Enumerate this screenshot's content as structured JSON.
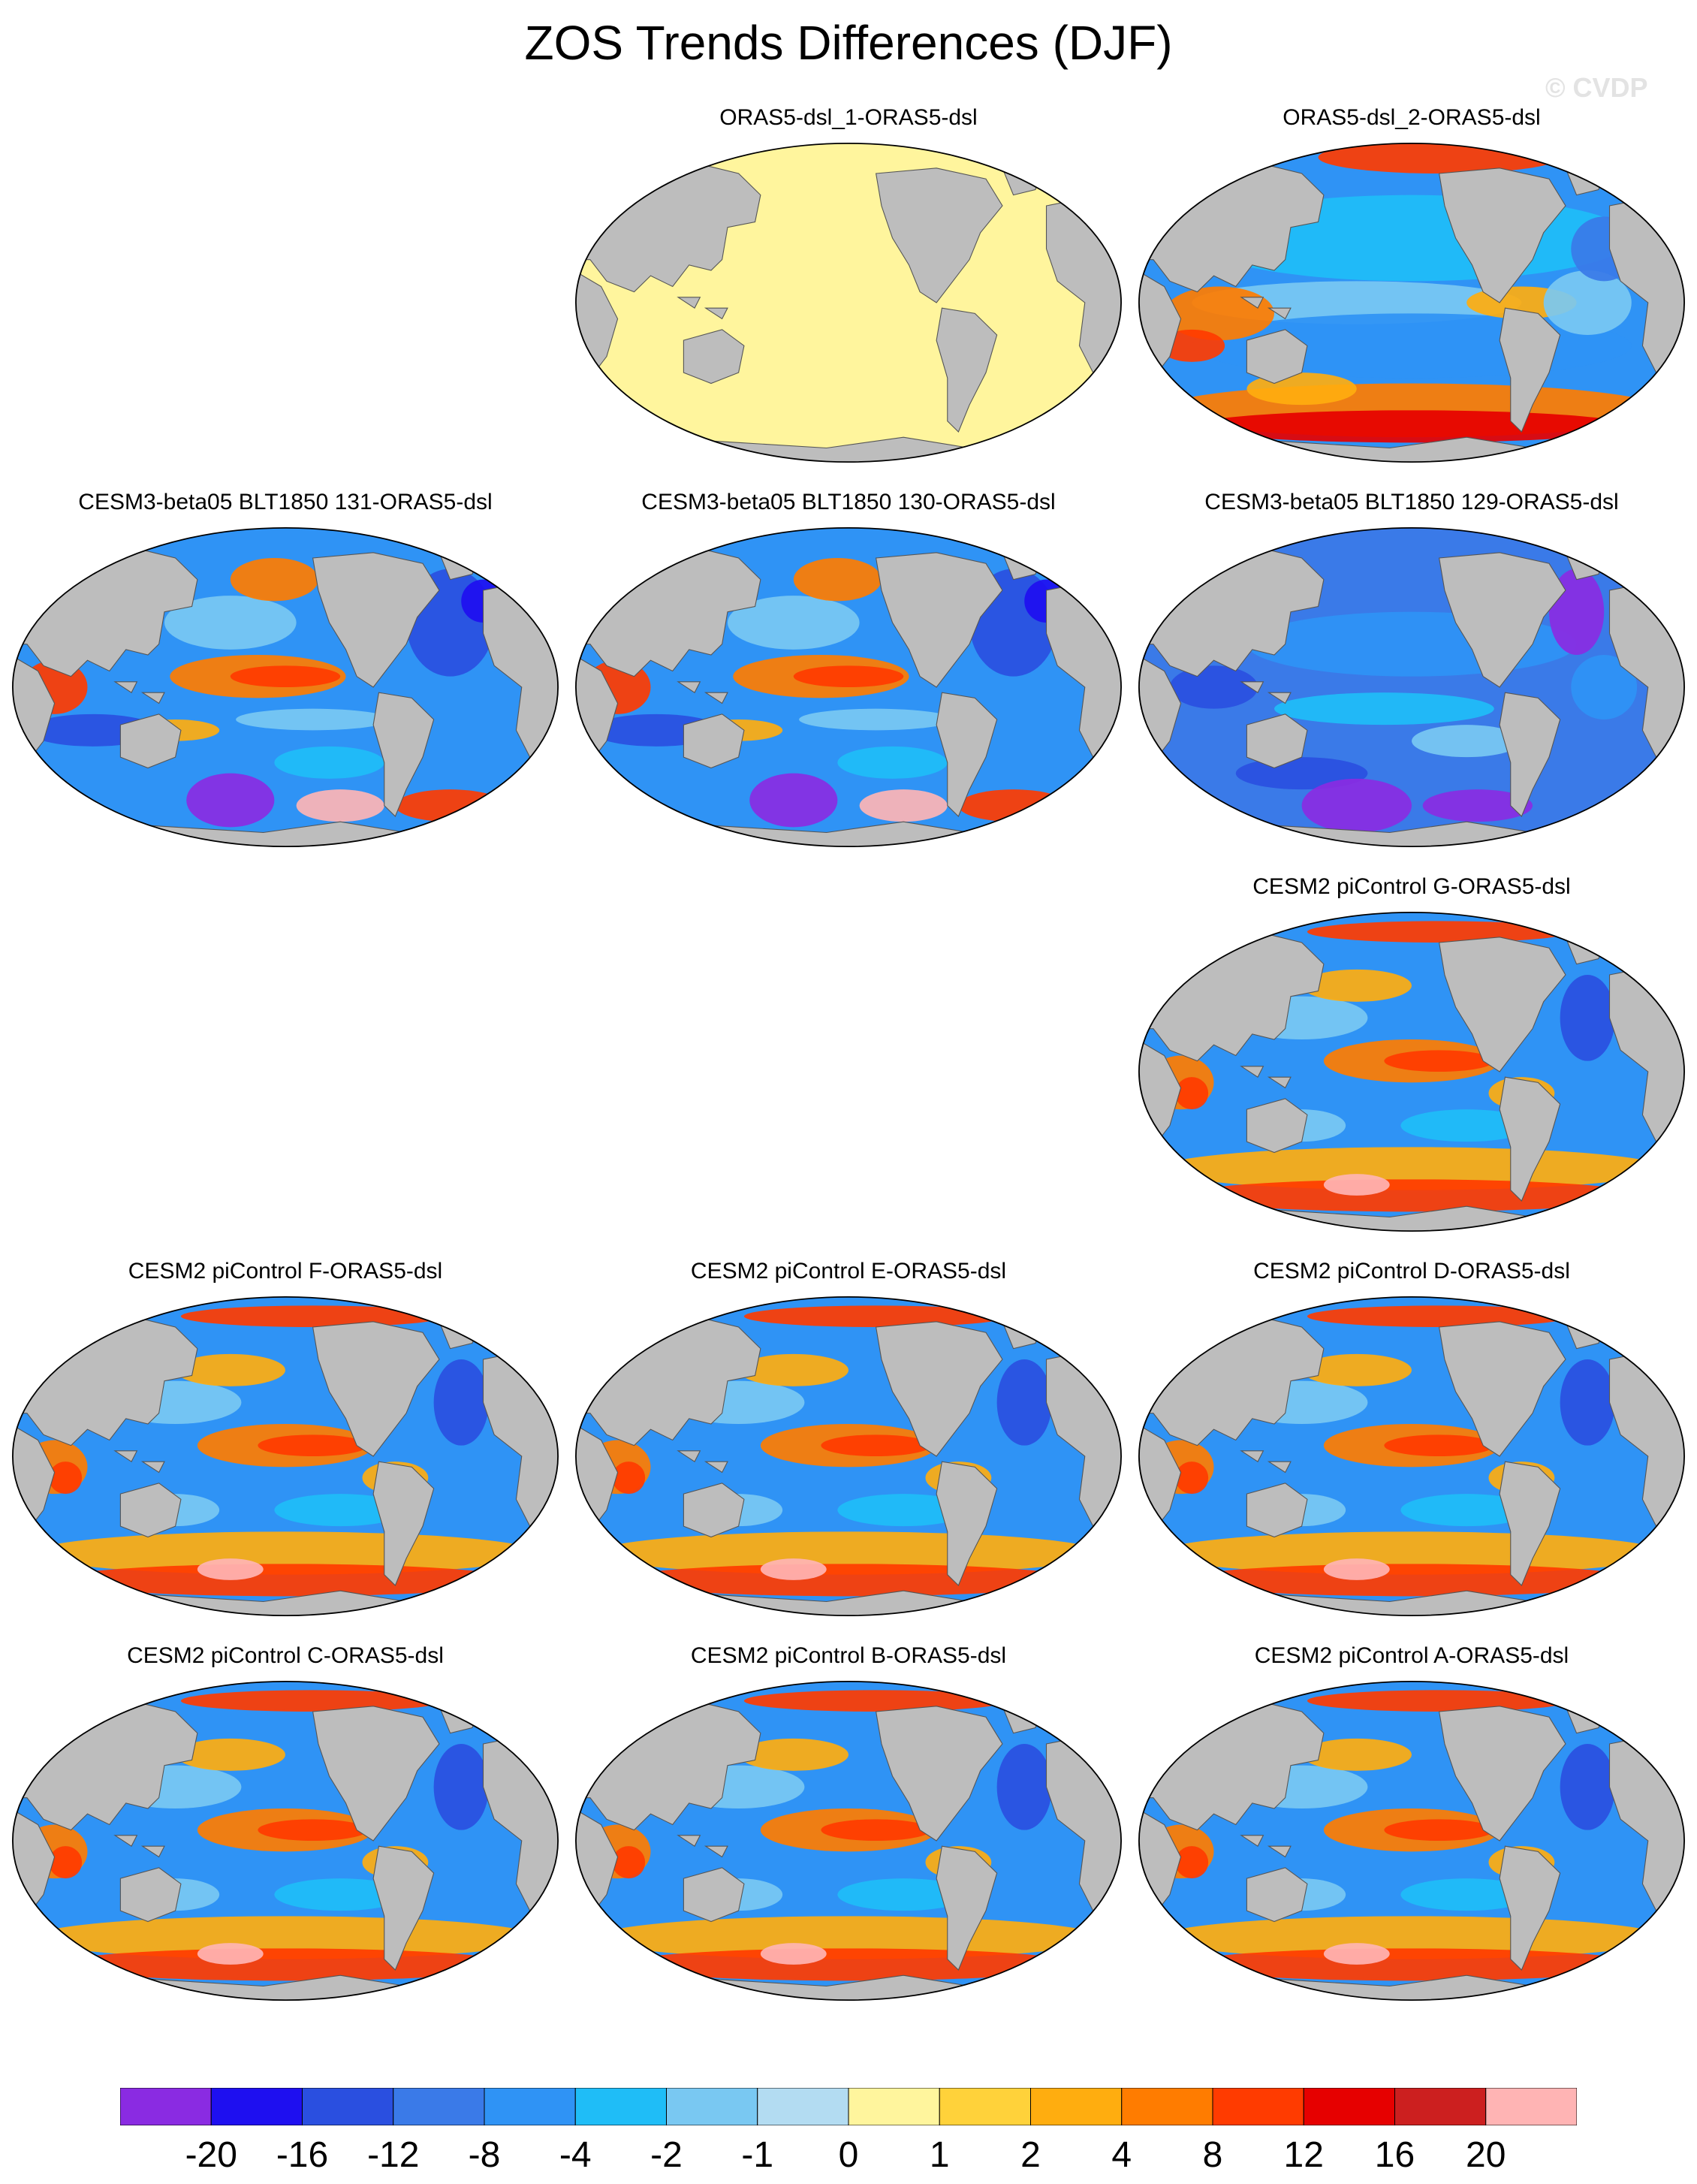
{
  "title": "ZOS Trends Differences (DJF)",
  "watermark": "© CVDP",
  "colors": {
    "land": "#bdbdbd",
    "zero_fill": "#fff59d",
    "border": "#000000"
  },
  "panels": [
    {
      "title": "ORAS5-dsl_1-ORAS5-dsl",
      "pattern": "zero",
      "row": 0,
      "col": 1
    },
    {
      "title": "ORAS5-dsl_2-ORAS5-dsl",
      "pattern": "mixed",
      "row": 0,
      "col": 2
    },
    {
      "title": "CESM3-beta05 BLT1850 131-ORAS5-dsl",
      "pattern": "warm_pacific",
      "row": 1,
      "col": 0
    },
    {
      "title": "CESM3-beta05 BLT1850 130-ORAS5-dsl",
      "pattern": "warm_pacific",
      "row": 1,
      "col": 1
    },
    {
      "title": "CESM3-beta05 BLT1850 129-ORAS5-dsl",
      "pattern": "cold",
      "row": 1,
      "col": 2
    },
    {
      "title": "CESM2 piControl G-ORAS5-dsl",
      "pattern": "cesm2",
      "row": 2,
      "col": 2
    },
    {
      "title": "CESM2 piControl F-ORAS5-dsl",
      "pattern": "cesm2",
      "row": 3,
      "col": 0
    },
    {
      "title": "CESM2 piControl E-ORAS5-dsl",
      "pattern": "cesm2",
      "row": 3,
      "col": 1
    },
    {
      "title": "CESM2 piControl D-ORAS5-dsl",
      "pattern": "cesm2",
      "row": 3,
      "col": 2
    },
    {
      "title": "CESM2 piControl C-ORAS5-dsl",
      "pattern": "cesm2",
      "row": 4,
      "col": 0
    },
    {
      "title": "CESM2 piControl B-ORAS5-dsl",
      "pattern": "cesm2",
      "row": 4,
      "col": 1
    },
    {
      "title": "CESM2 piControl A-ORAS5-dsl",
      "pattern": "cesm2",
      "row": 4,
      "col": 2
    }
  ],
  "colorbar": {
    "levels": [
      "-20",
      "-16",
      "-12",
      "-8",
      "-4",
      "-2",
      "-1",
      "0",
      "1",
      "2",
      "4",
      "8",
      "12",
      "16",
      "20"
    ],
    "colors": [
      "#8a2be2",
      "#1e0ff0",
      "#2a4fe0",
      "#3a7ae8",
      "#2f93f5",
      "#1fbdf7",
      "#79c8f2",
      "#b3dcf2",
      "#fff59d",
      "#ffd23a",
      "#ffad0f",
      "#ff7c00",
      "#ff3b00",
      "#e60000",
      "#cc1f1f",
      "#ffb4b4"
    ]
  }
}
